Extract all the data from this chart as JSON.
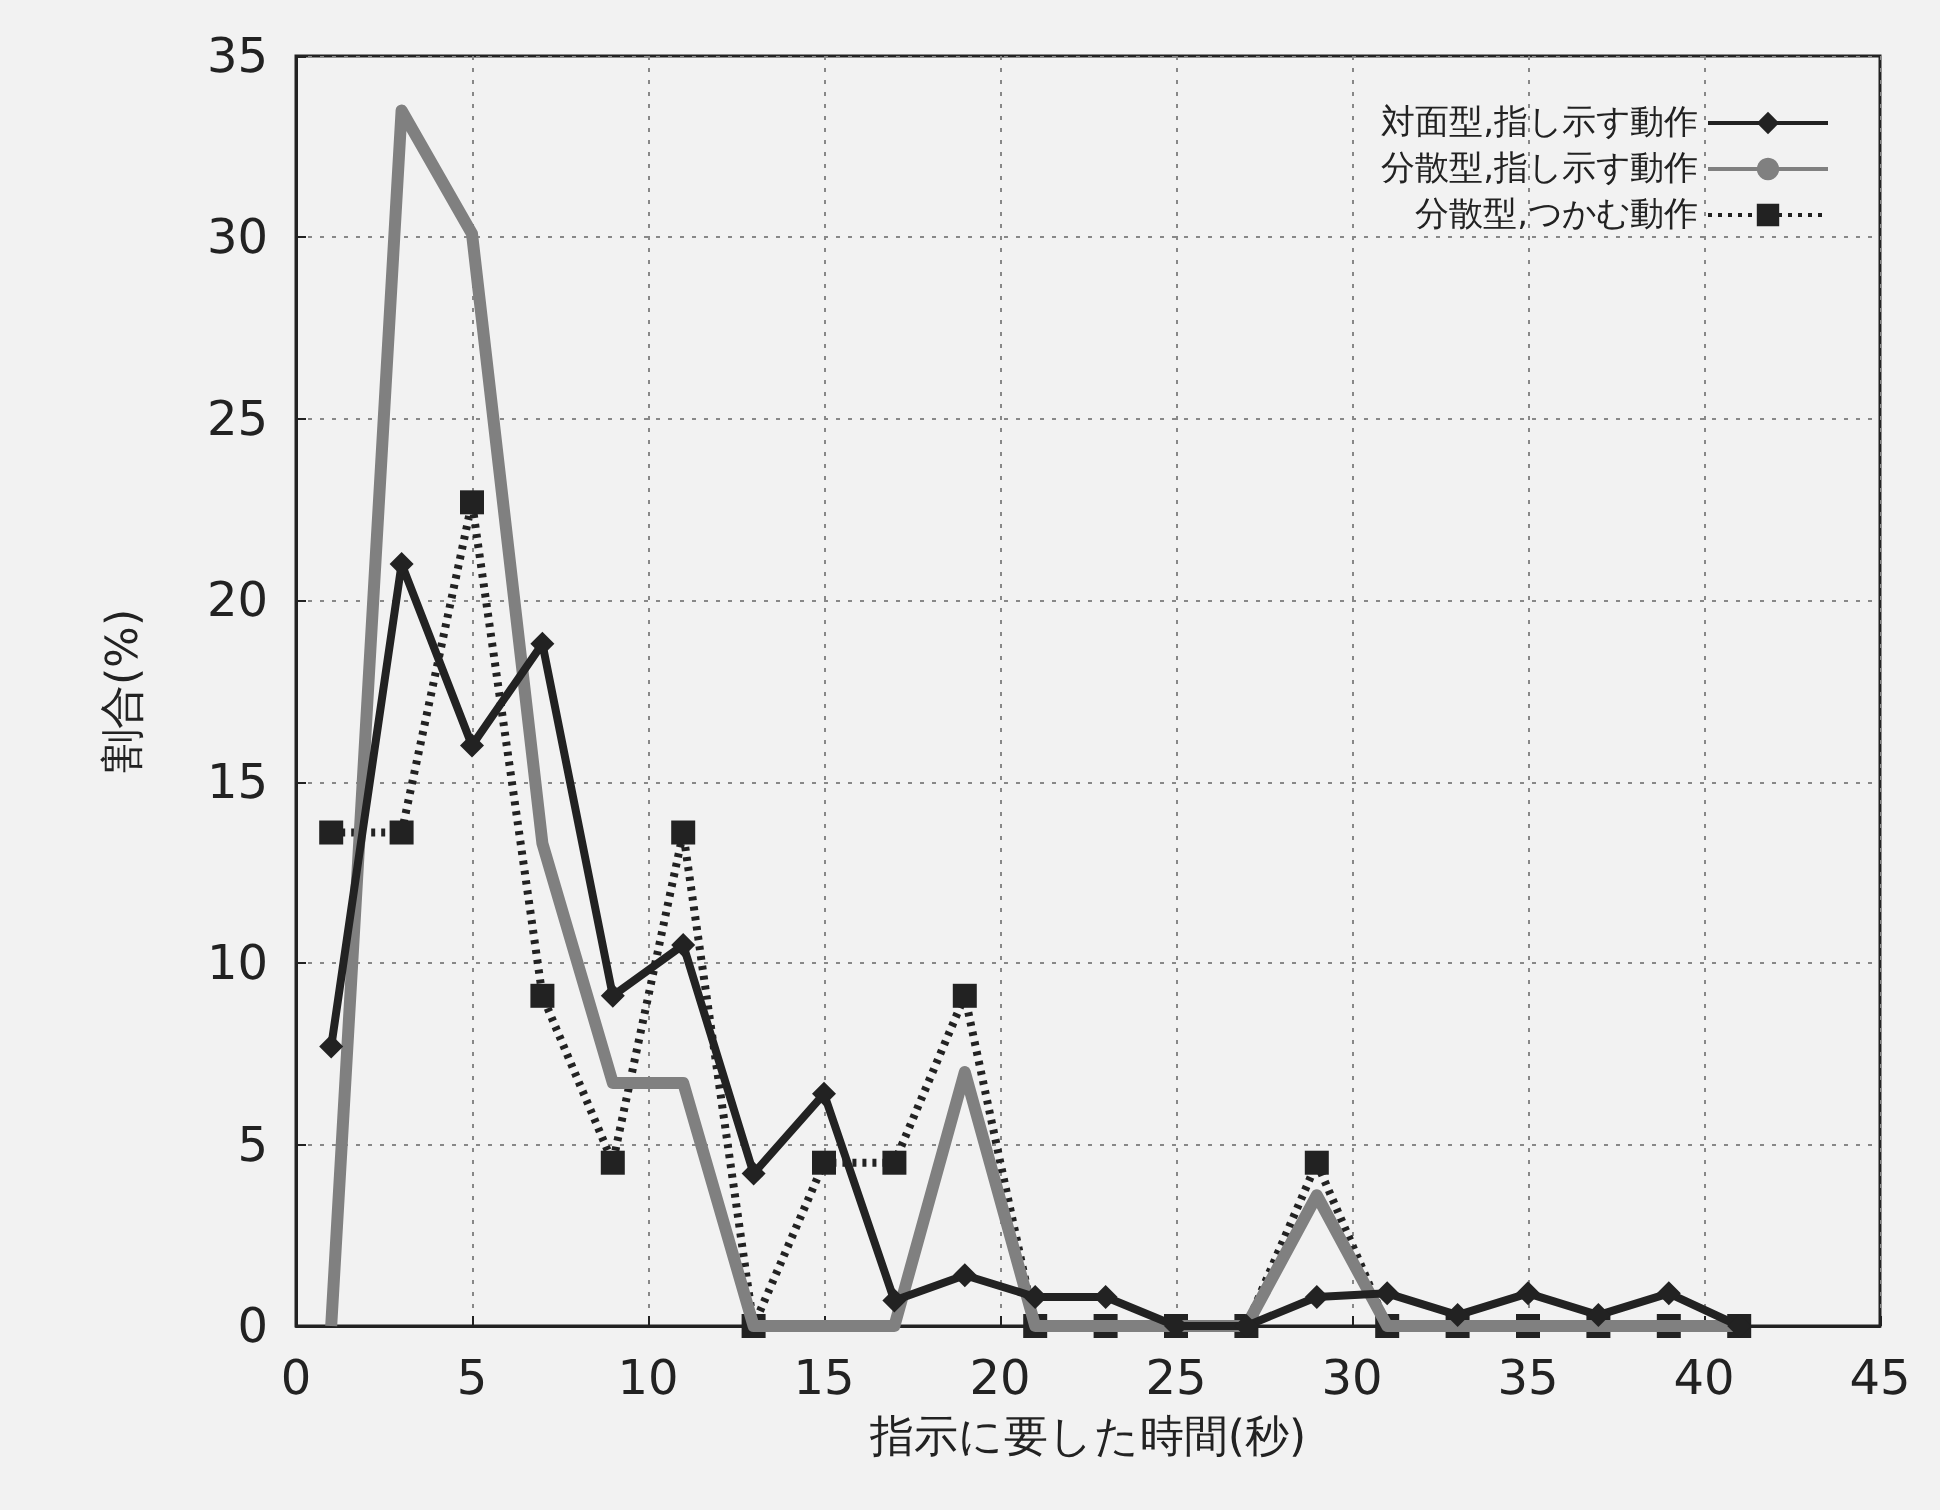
{
  "chart_data": {
    "type": "line",
    "xlabel": "指示に要した時間(秒)",
    "ylabel": "割合(%)",
    "x": [
      1,
      3,
      5,
      7,
      9,
      11,
      13,
      15,
      17,
      19,
      21,
      23,
      25,
      27,
      29,
      31,
      33,
      35,
      37,
      39,
      41
    ],
    "series": [
      {
        "name": "対面型,指し示す動作",
        "color": "#222222",
        "marker": "diamond",
        "line_style": "solid",
        "values": [
          7.7,
          21,
          16,
          18.8,
          9.1,
          10.5,
          4.2,
          6.4,
          0.7,
          1.4,
          0.8,
          0.8,
          0,
          0,
          0.8,
          0.9,
          0.3,
          0.9,
          0.3,
          0.9,
          0
        ]
      },
      {
        "name": "分散型,指し示す動作",
        "color": "#808080",
        "marker": "none",
        "line_style": "solid",
        "values": [
          0,
          33.5,
          30.1,
          13.3,
          6.7,
          6.7,
          0,
          0,
          0,
          7,
          0,
          0,
          0,
          0,
          3.6,
          0,
          0,
          0,
          0,
          0,
          0
        ]
      },
      {
        "name": "分散型,つかむ動作",
        "color": "#222222",
        "marker": "square",
        "line_style": "dotted",
        "values": [
          13.6,
          13.6,
          22.7,
          9.1,
          4.5,
          13.6,
          0,
          4.5,
          4.5,
          9.1,
          0,
          0,
          0,
          0,
          4.5,
          0,
          0,
          0,
          0,
          0,
          0
        ]
      }
    ],
    "xlim": [
      0,
      45
    ],
    "xticks": [
      0,
      5,
      10,
      15,
      20,
      25,
      30,
      35,
      40,
      45
    ],
    "ylim": [
      0,
      35
    ],
    "yticks": [
      0,
      5,
      10,
      15,
      20,
      25,
      30,
      35
    ],
    "grid": true,
    "legend": "top right"
  }
}
